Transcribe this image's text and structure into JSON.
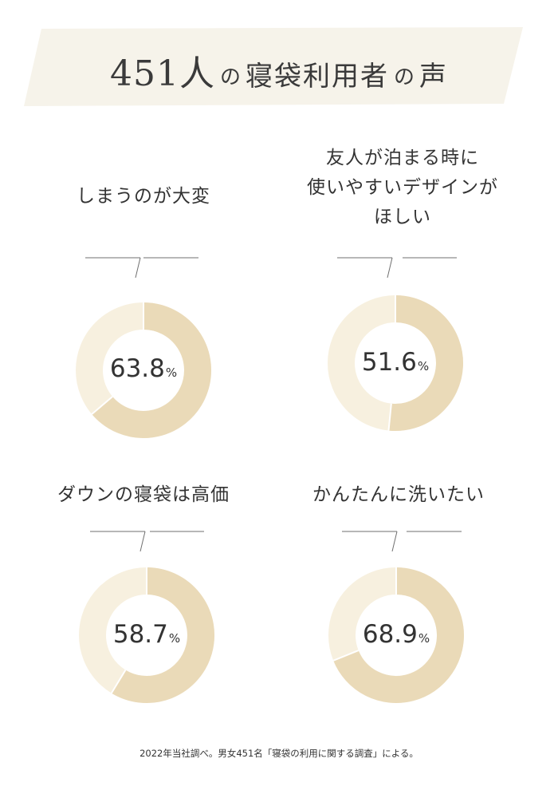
{
  "header": {
    "count": "451",
    "person": "人",
    "no1": "の",
    "subject": "寝袋利用者",
    "no2": "の",
    "voice": "声"
  },
  "colors": {
    "banner": "#f6f3ea",
    "ring_track": "#f7f0df",
    "ring_fill": "#eadab8",
    "line": "#6f6f6f"
  },
  "footnote": "2022年当社調べ。男女451名「寝袋の利用に関する調査」による。",
  "chart_data": [
    {
      "type": "pie",
      "title_lines": [
        "しまうのが大変"
      ],
      "value": 63.8,
      "value_text": "63.8",
      "unit": "%"
    },
    {
      "type": "pie",
      "title_lines": [
        "友人が泊まる時に",
        "使いやすいデザインが",
        "ほしい"
      ],
      "value": 51.6,
      "value_text": "51.6",
      "unit": "%"
    },
    {
      "type": "pie",
      "title_lines": [
        "ダウンの寝袋は高価"
      ],
      "value": 58.7,
      "value_text": "58.7",
      "unit": "%"
    },
    {
      "type": "pie",
      "title_lines": [
        "かんたんに洗いたい"
      ],
      "value": 68.9,
      "value_text": "68.9",
      "unit": "%"
    }
  ]
}
